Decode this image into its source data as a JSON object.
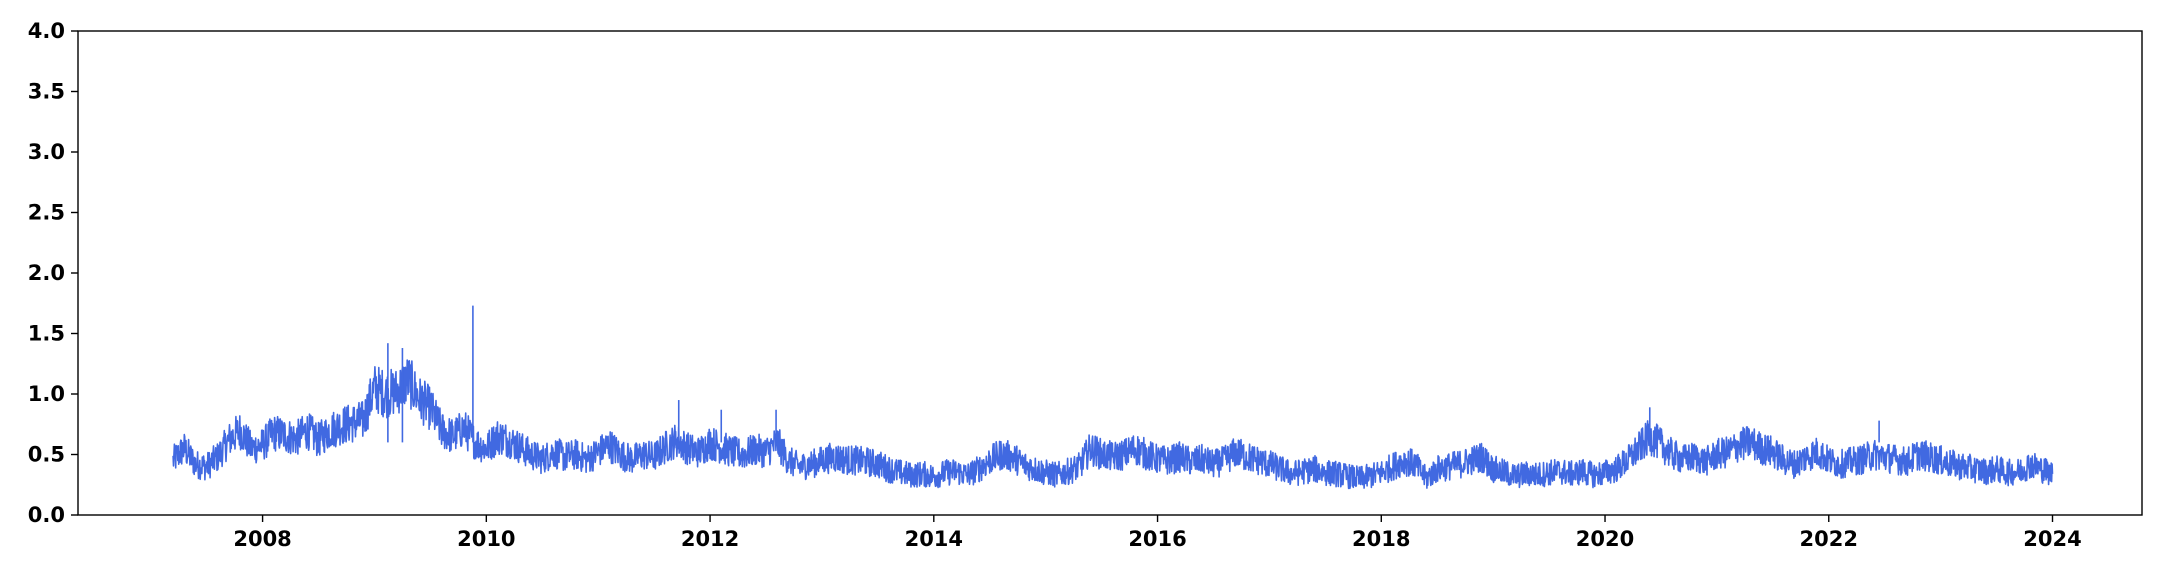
{
  "chart_data": {
    "type": "line",
    "title": "",
    "xlabel": "",
    "ylabel": "",
    "xlim": [
      2006.35,
      2024.8
    ],
    "ylim": [
      0,
      4.0
    ],
    "x_ticks": [
      2008,
      2010,
      2012,
      2014,
      2016,
      2018,
      2020,
      2022,
      2024
    ],
    "x_tick_labels": [
      "2008",
      "2010",
      "2012",
      "2014",
      "2016",
      "2018",
      "2020",
      "2022",
      "2024"
    ],
    "y_ticks": [
      0.0,
      0.5,
      1.0,
      1.5,
      2.0,
      2.5,
      3.0,
      3.5,
      4.0
    ],
    "y_tick_labels": [
      "0.0",
      "0.5",
      "1.0",
      "1.5",
      "2.0",
      "2.5",
      "3.0",
      "3.5",
      "4.0"
    ],
    "grid": false,
    "legend": "none",
    "series": [
      {
        "color": "#4169e1",
        "x": [
          2007.2,
          2007.3,
          2007.4,
          2007.5,
          2007.6,
          2007.7,
          2007.8,
          2007.9,
          2008.0,
          2008.1,
          2008.2,
          2008.3,
          2008.4,
          2008.5,
          2008.6,
          2008.7,
          2008.8,
          2008.9,
          2009.0,
          2009.1,
          2009.2,
          2009.3,
          2009.4,
          2009.5,
          2009.6,
          2009.7,
          2009.8,
          2009.9,
          2010.0,
          2010.1,
          2010.2,
          2010.3,
          2010.4,
          2010.5,
          2010.6,
          2010.7,
          2010.8,
          2010.9,
          2011.0,
          2011.1,
          2011.2,
          2011.3,
          2011.4,
          2011.5,
          2011.6,
          2011.7,
          2011.8,
          2011.9,
          2012.0,
          2012.1,
          2012.2,
          2012.3,
          2012.4,
          2012.5,
          2012.6,
          2012.7,
          2012.8,
          2012.9,
          2013.0,
          2013.1,
          2013.2,
          2013.3,
          2013.4,
          2013.5,
          2013.6,
          2013.7,
          2013.8,
          2013.9,
          2014.0,
          2014.1,
          2014.2,
          2014.3,
          2014.4,
          2014.5,
          2014.6,
          2014.7,
          2014.8,
          2014.9,
          2015.0,
          2015.1,
          2015.2,
          2015.3,
          2015.4,
          2015.5,
          2015.6,
          2015.7,
          2015.8,
          2015.9,
          2016.0,
          2016.1,
          2016.2,
          2016.3,
          2016.4,
          2016.5,
          2016.6,
          2016.7,
          2016.8,
          2016.9,
          2017.0,
          2017.1,
          2017.2,
          2017.3,
          2017.4,
          2017.5,
          2017.6,
          2017.7,
          2017.8,
          2017.9,
          2018.0,
          2018.1,
          2018.2,
          2018.3,
          2018.4,
          2018.5,
          2018.6,
          2018.7,
          2018.8,
          2018.9,
          2019.0,
          2019.1,
          2019.2,
          2019.3,
          2019.4,
          2019.5,
          2019.6,
          2019.7,
          2019.8,
          2019.9,
          2020.0,
          2020.1,
          2020.2,
          2020.3,
          2020.4,
          2020.5,
          2020.6,
          2020.7,
          2020.8,
          2020.9,
          2021.0,
          2021.1,
          2021.2,
          2021.3,
          2021.4,
          2021.5,
          2021.6,
          2021.7,
          2021.8,
          2021.9,
          2022.0,
          2022.1,
          2022.2,
          2022.3,
          2022.4,
          2022.5,
          2022.6,
          2022.7,
          2022.8,
          2022.9,
          2023.0,
          2023.1,
          2023.2,
          2023.3,
          2023.4,
          2023.5,
          2023.6,
          2023.7,
          2023.8,
          2023.9,
          2024.0
        ],
        "values": [
          0.45,
          0.55,
          0.42,
          0.4,
          0.48,
          0.62,
          0.7,
          0.55,
          0.58,
          0.68,
          0.66,
          0.63,
          0.7,
          0.62,
          0.7,
          0.74,
          0.76,
          0.78,
          1.05,
          1.0,
          1.02,
          1.12,
          0.96,
          0.88,
          0.7,
          0.65,
          0.72,
          0.6,
          0.55,
          0.65,
          0.62,
          0.56,
          0.5,
          0.46,
          0.52,
          0.48,
          0.5,
          0.46,
          0.52,
          0.58,
          0.5,
          0.46,
          0.5,
          0.48,
          0.56,
          0.62,
          0.55,
          0.52,
          0.6,
          0.56,
          0.52,
          0.5,
          0.54,
          0.52,
          0.6,
          0.45,
          0.4,
          0.42,
          0.45,
          0.48,
          0.46,
          0.45,
          0.44,
          0.42,
          0.38,
          0.35,
          0.33,
          0.34,
          0.32,
          0.35,
          0.36,
          0.33,
          0.38,
          0.45,
          0.5,
          0.48,
          0.42,
          0.38,
          0.35,
          0.33,
          0.36,
          0.4,
          0.55,
          0.5,
          0.48,
          0.5,
          0.55,
          0.5,
          0.46,
          0.45,
          0.48,
          0.44,
          0.46,
          0.42,
          0.45,
          0.52,
          0.48,
          0.45,
          0.42,
          0.38,
          0.34,
          0.36,
          0.38,
          0.35,
          0.34,
          0.32,
          0.3,
          0.32,
          0.35,
          0.4,
          0.45,
          0.42,
          0.3,
          0.38,
          0.4,
          0.42,
          0.45,
          0.48,
          0.38,
          0.35,
          0.32,
          0.34,
          0.33,
          0.35,
          0.36,
          0.34,
          0.36,
          0.33,
          0.35,
          0.38,
          0.45,
          0.55,
          0.65,
          0.58,
          0.5,
          0.46,
          0.48,
          0.44,
          0.5,
          0.52,
          0.58,
          0.6,
          0.55,
          0.52,
          0.45,
          0.42,
          0.48,
          0.52,
          0.45,
          0.42,
          0.44,
          0.46,
          0.5,
          0.48,
          0.46,
          0.44,
          0.5,
          0.48,
          0.45,
          0.42,
          0.4,
          0.38,
          0.36,
          0.38,
          0.35,
          0.36,
          0.42,
          0.38,
          0.34
        ],
        "spikes": [
          [
            2009.88,
            1.73
          ],
          [
            2009.12,
            1.42
          ],
          [
            2009.25,
            1.38
          ],
          [
            2011.72,
            0.95
          ],
          [
            2012.1,
            0.87
          ],
          [
            2012.59,
            0.87
          ],
          [
            2020.4,
            0.89
          ],
          [
            2022.45,
            0.78
          ]
        ]
      }
    ]
  }
}
